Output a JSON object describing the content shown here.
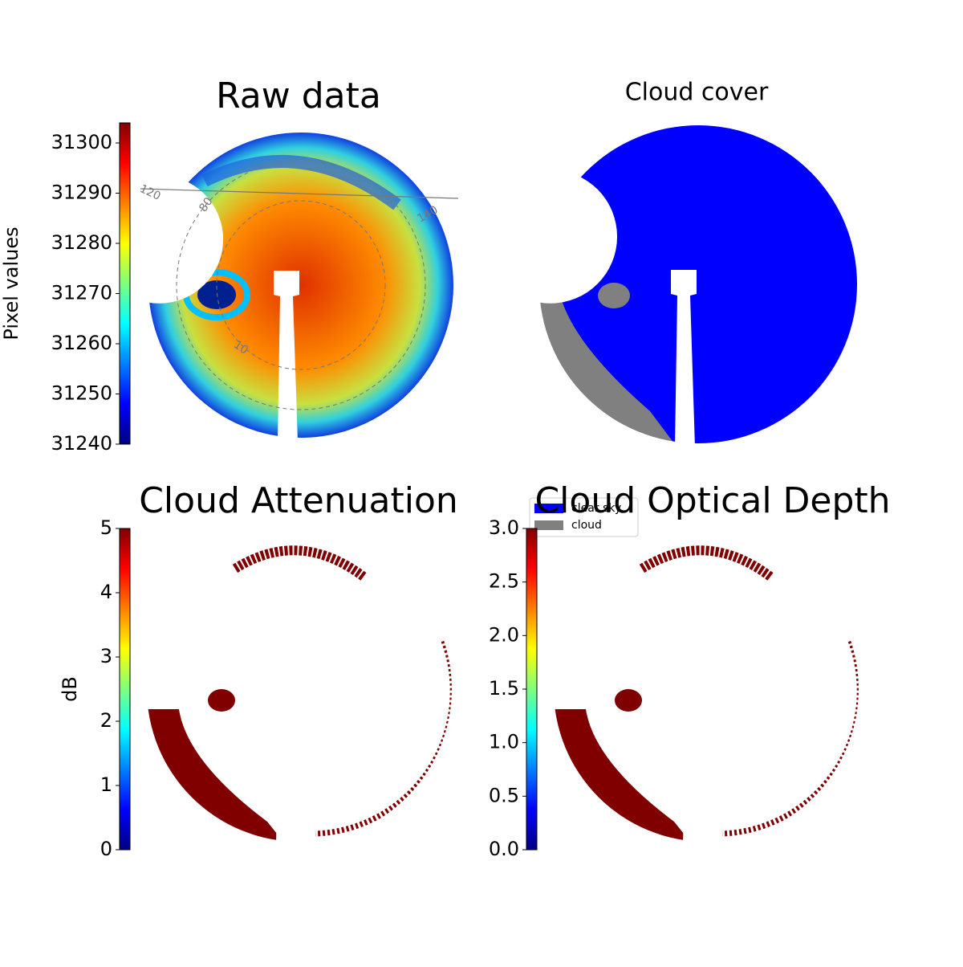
{
  "chart_data": [
    {
      "type": "image",
      "title": "Raw data",
      "colormap": "jet",
      "colorbar": {
        "label": "Pixel values",
        "lim": [
          31240,
          31304
        ],
        "ticks": [
          31240,
          31250,
          31260,
          31270,
          31280,
          31290,
          31300
        ]
      },
      "annotations": [
        "120",
        "80",
        "10",
        "140"
      ]
    },
    {
      "type": "classification",
      "title": "Cloud cover",
      "legend": [
        {
          "name": "clear sky",
          "color": "#0000ff"
        },
        {
          "name": "cloud",
          "color": "#808080"
        }
      ]
    },
    {
      "type": "image",
      "title": "Cloud Attenuation",
      "colormap": "jet",
      "colorbar": {
        "label": "dB",
        "lim": [
          0,
          5
        ],
        "ticks": [
          0,
          1,
          2,
          3,
          4,
          5
        ]
      }
    },
    {
      "type": "image",
      "title": "Cloud Optical Depth",
      "colormap": "jet",
      "colorbar": {
        "lim": [
          0,
          3
        ],
        "ticks": [
          {
            "value": 0,
            "label": "0.0"
          },
          0.5,
          {
            "value": 1,
            "label": "1.0"
          },
          1.5,
          {
            "value": 2,
            "label": "2.0"
          },
          2.5,
          {
            "value": 3,
            "label": "3.0"
          }
        ]
      }
    }
  ]
}
